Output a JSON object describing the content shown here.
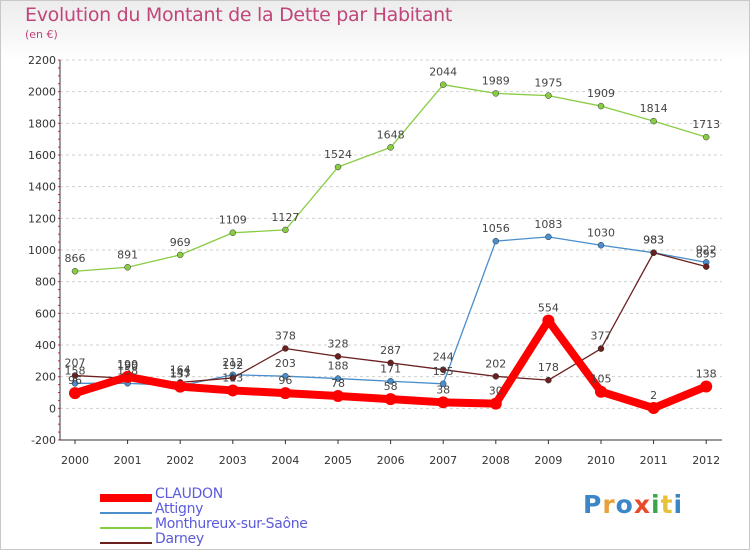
{
  "title": "Evolution du Montant de la Dette par Habitant",
  "subtitle": "(en €)",
  "logo": {
    "text": "Proxiti",
    "colors": [
      "#3a86c8",
      "#e8a13a",
      "#3a86c8",
      "#e84a2a",
      "#3aa84a",
      "#e8c13a",
      "#3a86c8"
    ]
  },
  "chart_data": {
    "type": "line",
    "title": "Evolution du Montant de la Dette par Habitant",
    "ylabel": "(en €)",
    "x": [
      2000,
      2001,
      2002,
      2003,
      2004,
      2005,
      2006,
      2007,
      2008,
      2009,
      2010,
      2011,
      2012
    ],
    "ylim": [
      -200,
      2200
    ],
    "yticks": [
      -200,
      0,
      200,
      400,
      600,
      800,
      1000,
      1200,
      1400,
      1600,
      1800,
      2000,
      2200
    ],
    "grid": "horizontal dashed",
    "legend_position": "bottom-left",
    "series": [
      {
        "name": "CLAUDON",
        "color": "#ff0000",
        "values": [
          96,
          199,
          137,
          113,
          96,
          78,
          58,
          38,
          30,
          554,
          105,
          2,
          138
        ],
        "labels": [
          "96",
          "199",
          "137",
          "113",
          "96",
          "78",
          "58",
          "38",
          "30",
          "554",
          "105",
          "2",
          "138"
        ]
      },
      {
        "name": "Attigny",
        "color": "#4a8fcc",
        "values": [
          158,
          158,
          143,
          212,
          203,
          188,
          171,
          155,
          1056,
          1083,
          1030,
          983,
          922
        ],
        "labels": [
          "158",
          "158",
          "143",
          "212",
          "203",
          "188",
          "171",
          "155",
          "1056",
          "1083",
          "1030",
          "983",
          "922"
        ]
      },
      {
        "name": "Monthureux-sur-Saône",
        "color": "#88cc44",
        "values": [
          866,
          891,
          969,
          1109,
          1127,
          1524,
          1648,
          2044,
          1989,
          1975,
          1909,
          1814,
          1713
        ],
        "labels": [
          "866",
          "891",
          "969",
          "1109",
          "1127",
          "1524",
          "1648",
          "2044",
          "1989",
          "1975",
          "1909",
          "1814",
          "1713"
        ]
      },
      {
        "name": "Darney",
        "color": "#6b1f1f",
        "values": [
          207,
          190,
          164,
          192,
          378,
          328,
          287,
          244,
          202,
          178,
          377,
          983,
          895
        ],
        "labels": [
          "207",
          "190",
          "164",
          "192",
          "378",
          "328",
          "287",
          "244",
          "202",
          "178",
          "377",
          "983",
          "895"
        ]
      }
    ]
  }
}
